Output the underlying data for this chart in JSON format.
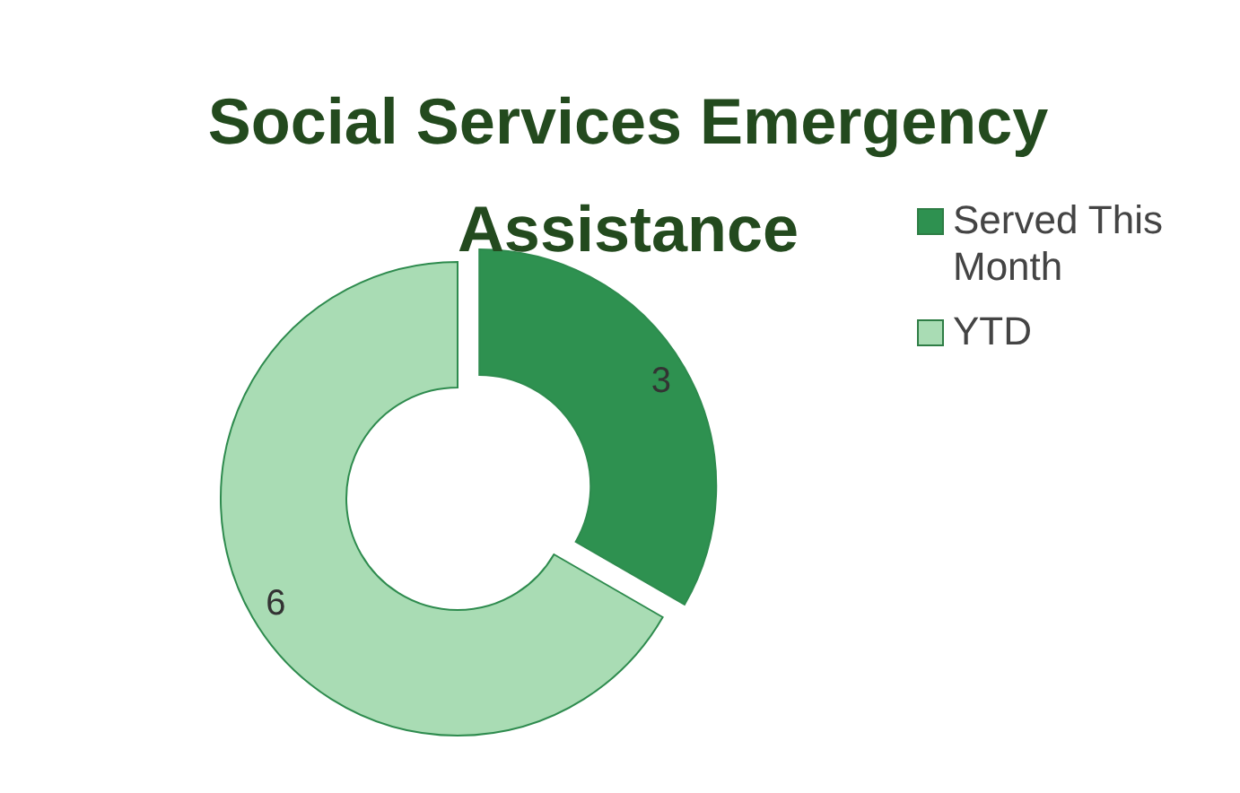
{
  "chart_data": {
    "type": "donut",
    "title": "Social Services Emergency Assistance",
    "categories": [
      "Served This Month",
      "YTD"
    ],
    "values": [
      3,
      6
    ],
    "colors": [
      "#2e9150",
      "#a9dcb4"
    ],
    "data_labels": true,
    "legend": "right"
  }
}
